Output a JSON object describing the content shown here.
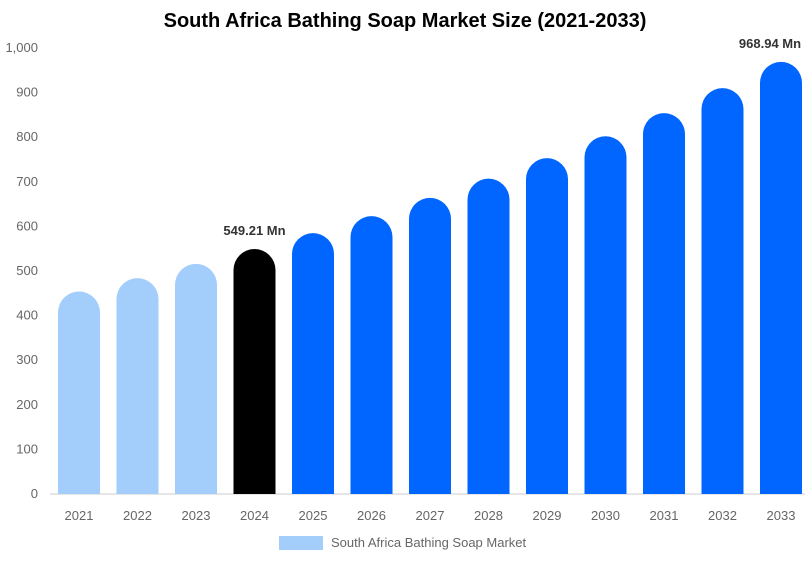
{
  "chart_data": {
    "type": "bar",
    "title": "South Africa Bathing Soap Market Size (2021-2033)",
    "categories": [
      "2021",
      "2022",
      "2023",
      "2024",
      "2025",
      "2026",
      "2027",
      "2028",
      "2029",
      "2030",
      "2031",
      "2032",
      "2033"
    ],
    "series": [
      {
        "name": "South Africa Bathing Soap Market",
        "values": [
          454,
          484,
          516,
          549.21,
          585,
          623,
          664,
          707,
          753,
          802,
          854,
          910,
          968.94
        ]
      }
    ],
    "data_labels": {
      "3": "549.21 Mn",
      "12": "968.94 Mn"
    },
    "ylim": [
      0,
      1000
    ],
    "yticks": [
      0,
      100,
      200,
      300,
      400,
      500,
      600,
      700,
      800,
      900,
      1000
    ],
    "ytick_labels": [
      "0",
      "100",
      "200",
      "300",
      "400",
      "500",
      "600",
      "700",
      "800",
      "900",
      "1,000"
    ],
    "grid": false,
    "legend_position": "bottom",
    "colors": {
      "historical": "#a3cdfb",
      "current": "#000000",
      "forecast": "#0066ff"
    }
  }
}
